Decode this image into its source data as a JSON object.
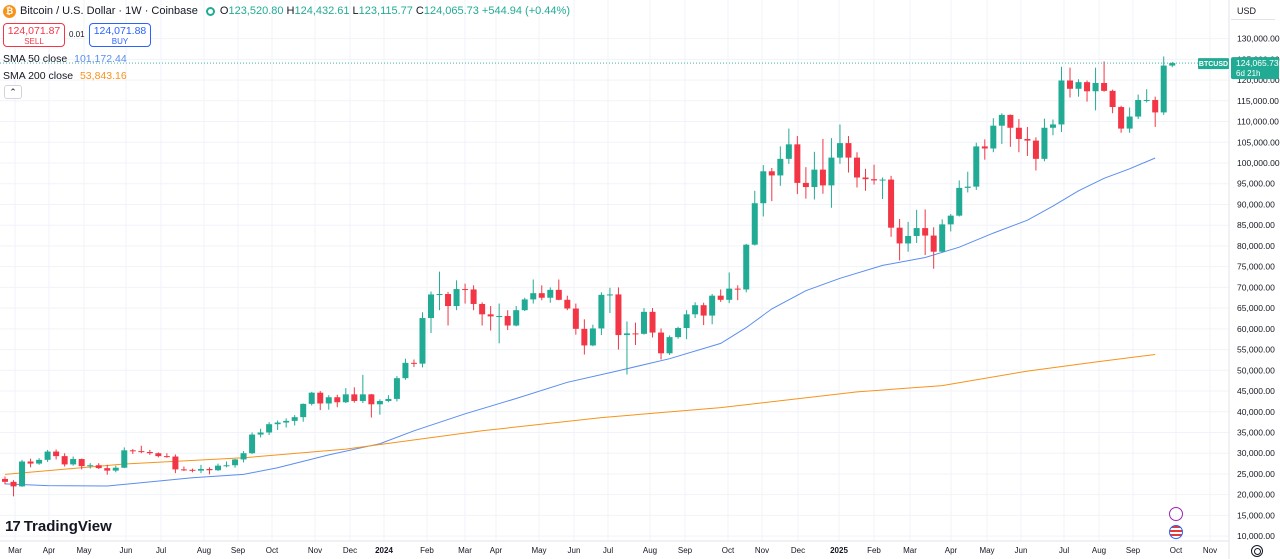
{
  "header": {
    "coin_glyph": "₿",
    "title": "Bitcoin / U.S. Dollar · 1W · Coinbase",
    "ohlc": [
      {
        "k": "O",
        "v": "123,520.80"
      },
      {
        "k": "H",
        "v": "124,432.61"
      },
      {
        "k": "L",
        "v": "123,115.77"
      },
      {
        "k": "C",
        "v": "124,065.73"
      }
    ],
    "change": "+544.94 (+0.44%)"
  },
  "trade": {
    "sell_price": "124,071.87",
    "sell_label": "SELL",
    "spread": "0.01",
    "buy_price": "124,071.88",
    "buy_label": "BUY"
  },
  "indicators": [
    {
      "label": "SMA 50 close",
      "value": "101,172.44",
      "color": "#5b8def"
    },
    {
      "label": "SMA 200 close",
      "value": "53,843.16",
      "color": "#f7931a"
    }
  ],
  "collapse_glyph": "⌃",
  "price_axis": {
    "currency": "USD",
    "last_symbol": "BTCUSD",
    "last_price": "124,065.73",
    "countdown": "6d 21h"
  },
  "brand": {
    "mark": "17",
    "name": "TradingView"
  },
  "colors": {
    "up": "#22ab94",
    "down": "#f23645",
    "sma50": "#5b8def",
    "sma200": "#f7931a",
    "grid": "#f0f3fa",
    "text": "#131722"
  },
  "icons": {
    "events": [
      "dividends-bolt-icon",
      "us-flag-event-icon"
    ],
    "settings": "gear-icon"
  },
  "chart_data": {
    "type": "candlestick",
    "title": "Bitcoin / U.S. Dollar · 1W · Coinbase",
    "xlabel": "",
    "ylabel": "",
    "ylim": [
      10000,
      135000
    ],
    "grid": true,
    "x_axis_labels": [
      "Mar",
      "Apr",
      "May",
      "Jun",
      "Jul",
      "Aug",
      "Sep",
      "Oct",
      "Nov",
      "Dec",
      "2024",
      "Feb",
      "Mar",
      "Apr",
      "May",
      "Jun",
      "Jul",
      "Aug",
      "Sep",
      "Oct",
      "Nov",
      "Dec",
      "2025",
      "Feb",
      "Mar",
      "Apr",
      "May",
      "Jun",
      "Jul",
      "Aug",
      "Sep",
      "Oct",
      "Nov"
    ],
    "y_axis_labels": [
      "10,000.00",
      "15,000.00",
      "20,000.00",
      "25,000.00",
      "30,000.00",
      "35,000.00",
      "40,000.00",
      "45,000.00",
      "50,000.00",
      "55,000.00",
      "60,000.00",
      "65,000.00",
      "70,000.00",
      "75,000.00",
      "80,000.00",
      "85,000.00",
      "90,000.00",
      "95,000.00",
      "100,000.00",
      "105,000.00",
      "110,000.00",
      "115,000.00",
      "120,000.00",
      "125,000.00",
      "130,000.00"
    ],
    "candles": [
      [
        23800,
        24400,
        22500,
        23100
      ],
      [
        23100,
        23500,
        19600,
        22000
      ],
      [
        22000,
        28400,
        21900,
        28000
      ],
      [
        28000,
        28700,
        26600,
        27500
      ],
      [
        27500,
        28800,
        27200,
        28400
      ],
      [
        28400,
        30800,
        27900,
        30400
      ],
      [
        30400,
        30900,
        28500,
        29300
      ],
      [
        29300,
        30000,
        26800,
        27300
      ],
      [
        27300,
        29200,
        27000,
        28600
      ],
      [
        28600,
        28700,
        26100,
        26900
      ],
      [
        26900,
        27600,
        26300,
        27100
      ],
      [
        27100,
        27600,
        26200,
        26400
      ],
      [
        26400,
        27200,
        24800,
        25800
      ],
      [
        25800,
        27000,
        25400,
        26500
      ],
      [
        26500,
        31400,
        26400,
        30700
      ],
      [
        30700,
        31000,
        29800,
        30500
      ],
      [
        30500,
        31800,
        30000,
        30300
      ],
      [
        30300,
        30800,
        29600,
        30000
      ],
      [
        30000,
        30200,
        29000,
        29300
      ],
      [
        29300,
        30000,
        28900,
        29200
      ],
      [
        29200,
        29700,
        25200,
        26100
      ],
      [
        26100,
        26800,
        25700,
        26000
      ],
      [
        26000,
        26300,
        25400,
        25800
      ],
      [
        25800,
        27200,
        25200,
        26200
      ],
      [
        26200,
        26600,
        24900,
        25900
      ],
      [
        25900,
        27500,
        25700,
        27000
      ],
      [
        27000,
        28000,
        26600,
        27100
      ],
      [
        27100,
        28600,
        26500,
        28500
      ],
      [
        28500,
        30500,
        27800,
        30000
      ],
      [
        30000,
        35000,
        29800,
        34500
      ],
      [
        34500,
        35900,
        33800,
        35000
      ],
      [
        35000,
        37500,
        34400,
        37000
      ],
      [
        37000,
        37900,
        35600,
        37400
      ],
      [
        37400,
        38400,
        36200,
        37800
      ],
      [
        37800,
        39200,
        36700,
        38700
      ],
      [
        38700,
        42000,
        37600,
        41900
      ],
      [
        41900,
        44800,
        41500,
        44600
      ],
      [
        44600,
        45000,
        40400,
        42000
      ],
      [
        42000,
        44000,
        40500,
        43500
      ],
      [
        43500,
        44100,
        41100,
        42300
      ],
      [
        42300,
        45700,
        42100,
        44200
      ],
      [
        44200,
        45900,
        42200,
        42600
      ],
      [
        42600,
        48900,
        42100,
        44200
      ],
      [
        44200,
        44300,
        38600,
        41800
      ],
      [
        41800,
        43000,
        39300,
        42600
      ],
      [
        42600,
        44000,
        42300,
        43100
      ],
      [
        43100,
        48600,
        42500,
        48100
      ],
      [
        48100,
        52800,
        47700,
        51800
      ],
      [
        51800,
        52600,
        50800,
        51600
      ],
      [
        51600,
        64000,
        50700,
        62600
      ],
      [
        62600,
        69000,
        59000,
        68300
      ],
      [
        68300,
        73800,
        64500,
        68400
      ],
      [
        68400,
        68900,
        60800,
        65500
      ],
      [
        65500,
        71700,
        64500,
        69600
      ],
      [
        69600,
        70900,
        66100,
        69500
      ],
      [
        69500,
        70500,
        64500,
        66000
      ],
      [
        66000,
        66400,
        60800,
        63500
      ],
      [
        63500,
        65500,
        59600,
        63000
      ],
      [
        63000,
        66100,
        56500,
        63100
      ],
      [
        63100,
        64500,
        59700,
        60800
      ],
      [
        60800,
        65500,
        60600,
        64500
      ],
      [
        64500,
        67500,
        64300,
        67100
      ],
      [
        67100,
        71900,
        66100,
        68600
      ],
      [
        68600,
        70500,
        66900,
        67500
      ],
      [
        67500,
        70000,
        66300,
        69400
      ],
      [
        69400,
        71900,
        66900,
        67000
      ],
      [
        67000,
        68000,
        64500,
        64900
      ],
      [
        64900,
        66100,
        58600,
        60000
      ],
      [
        60000,
        62300,
        53800,
        56000
      ],
      [
        56000,
        61000,
        55800,
        60100
      ],
      [
        60100,
        68800,
        58500,
        68200
      ],
      [
        68200,
        69900,
        63800,
        68300
      ],
      [
        68300,
        70000,
        55000,
        58500
      ],
      [
        58500,
        61800,
        49000,
        58900
      ],
      [
        58900,
        61500,
        56100,
        58800
      ],
      [
        58800,
        65000,
        58600,
        64100
      ],
      [
        64100,
        65000,
        57900,
        59100
      ],
      [
        59100,
        60100,
        52600,
        54100
      ],
      [
        54100,
        58400,
        53700,
        58000
      ],
      [
        58000,
        60500,
        57600,
        60200
      ],
      [
        60200,
        64500,
        57500,
        63500
      ],
      [
        63500,
        66400,
        62600,
        65700
      ],
      [
        65700,
        66300,
        60900,
        63200
      ],
      [
        63200,
        68400,
        61100,
        68000
      ],
      [
        68000,
        69500,
        66500,
        67000
      ],
      [
        67000,
        73600,
        66200,
        69700
      ],
      [
        69700,
        70500,
        66900,
        69500
      ],
      [
        69500,
        80500,
        68800,
        80300
      ],
      [
        80300,
        93300,
        80100,
        90300
      ],
      [
        90300,
        99500,
        87100,
        98000
      ],
      [
        98000,
        98800,
        90800,
        97000
      ],
      [
        97000,
        104000,
        94500,
        101000
      ],
      [
        101000,
        108300,
        99800,
        104500
      ],
      [
        104500,
        106500,
        92500,
        95200
      ],
      [
        95200,
        99000,
        91400,
        94200
      ],
      [
        94200,
        102700,
        91200,
        98400
      ],
      [
        98400,
        105800,
        92600,
        94600
      ],
      [
        94600,
        106000,
        89200,
        101300
      ],
      [
        101300,
        109300,
        99800,
        104800
      ],
      [
        104800,
        106500,
        97700,
        101300
      ],
      [
        101300,
        102600,
        94100,
        96500
      ],
      [
        96500,
        98600,
        93300,
        96100
      ],
      [
        96100,
        99600,
        94800,
        95800
      ],
      [
        95800,
        96500,
        91300,
        96000
      ],
      [
        96000,
        96900,
        82200,
        84400
      ],
      [
        84400,
        86500,
        76500,
        80600
      ],
      [
        80600,
        85800,
        78600,
        82400
      ],
      [
        82400,
        88700,
        80700,
        84300
      ],
      [
        84300,
        88800,
        77800,
        82500
      ],
      [
        82500,
        84500,
        74500,
        78600
      ],
      [
        78600,
        86400,
        78400,
        85200
      ],
      [
        85200,
        87700,
        83500,
        87300
      ],
      [
        87300,
        95800,
        87100,
        94000
      ],
      [
        94000,
        97900,
        92900,
        94300
      ],
      [
        94300,
        104900,
        93500,
        104000
      ],
      [
        104000,
        105700,
        100800,
        103500
      ],
      [
        103500,
        110800,
        102600,
        109000
      ],
      [
        109000,
        112000,
        104600,
        111600
      ],
      [
        111600,
        111700,
        103900,
        108500
      ],
      [
        108500,
        110600,
        102600,
        105800
      ],
      [
        105800,
        108700,
        101700,
        105400
      ],
      [
        105400,
        106200,
        98200,
        101000
      ],
      [
        101000,
        110700,
        100400,
        108500
      ],
      [
        108500,
        110500,
        106700,
        109300
      ],
      [
        109300,
        123200,
        107500,
        119900
      ],
      [
        119900,
        123000,
        115800,
        117900
      ],
      [
        117900,
        120200,
        116000,
        119500
      ],
      [
        119500,
        119900,
        114800,
        117300
      ],
      [
        117300,
        123000,
        112700,
        119300
      ],
      [
        119300,
        124500,
        117200,
        117400
      ],
      [
        117400,
        117700,
        112000,
        113500
      ],
      [
        113500,
        113800,
        107300,
        108300
      ],
      [
        108300,
        113400,
        107300,
        111200
      ],
      [
        111200,
        116500,
        110600,
        115200
      ],
      [
        115200,
        117800,
        114600,
        115200
      ],
      [
        115200,
        116000,
        108700,
        112200
      ],
      [
        112200,
        125700,
        111600,
        123500
      ],
      [
        123500,
        124400,
        123100,
        124100
      ]
    ],
    "series": [
      {
        "name": "SMA 50 close",
        "color": "#5b8def",
        "points": [
          [
            0,
            22600
          ],
          [
            5,
            22200
          ],
          [
            12,
            22100
          ],
          [
            22,
            24100
          ],
          [
            28,
            24900
          ],
          [
            32,
            26500
          ],
          [
            38,
            29600
          ],
          [
            44,
            32300
          ],
          [
            48,
            35400
          ],
          [
            54,
            39500
          ],
          [
            60,
            43200
          ],
          [
            66,
            47100
          ],
          [
            72,
            49900
          ],
          [
            78,
            52800
          ],
          [
            84,
            56500
          ],
          [
            87,
            60300
          ],
          [
            90,
            64800
          ],
          [
            94,
            69200
          ],
          [
            98,
            72200
          ],
          [
            103,
            75300
          ],
          [
            108,
            77200
          ],
          [
            112,
            79700
          ],
          [
            116,
            83100
          ],
          [
            120,
            86200
          ],
          [
            123,
            89600
          ],
          [
            126,
            93300
          ],
          [
            129,
            96300
          ],
          [
            132,
            98600
          ],
          [
            135,
            101200
          ]
        ]
      },
      {
        "name": "SMA 200 close",
        "color": "#f7931a",
        "points": [
          [
            0,
            24900
          ],
          [
            14,
            27400
          ],
          [
            28,
            28900
          ],
          [
            40,
            31000
          ],
          [
            56,
            35400
          ],
          [
            70,
            38600
          ],
          [
            84,
            41000
          ],
          [
            100,
            44800
          ],
          [
            110,
            46300
          ],
          [
            120,
            49800
          ],
          [
            128,
            52000
          ],
          [
            135,
            53800
          ]
        ]
      }
    ]
  }
}
